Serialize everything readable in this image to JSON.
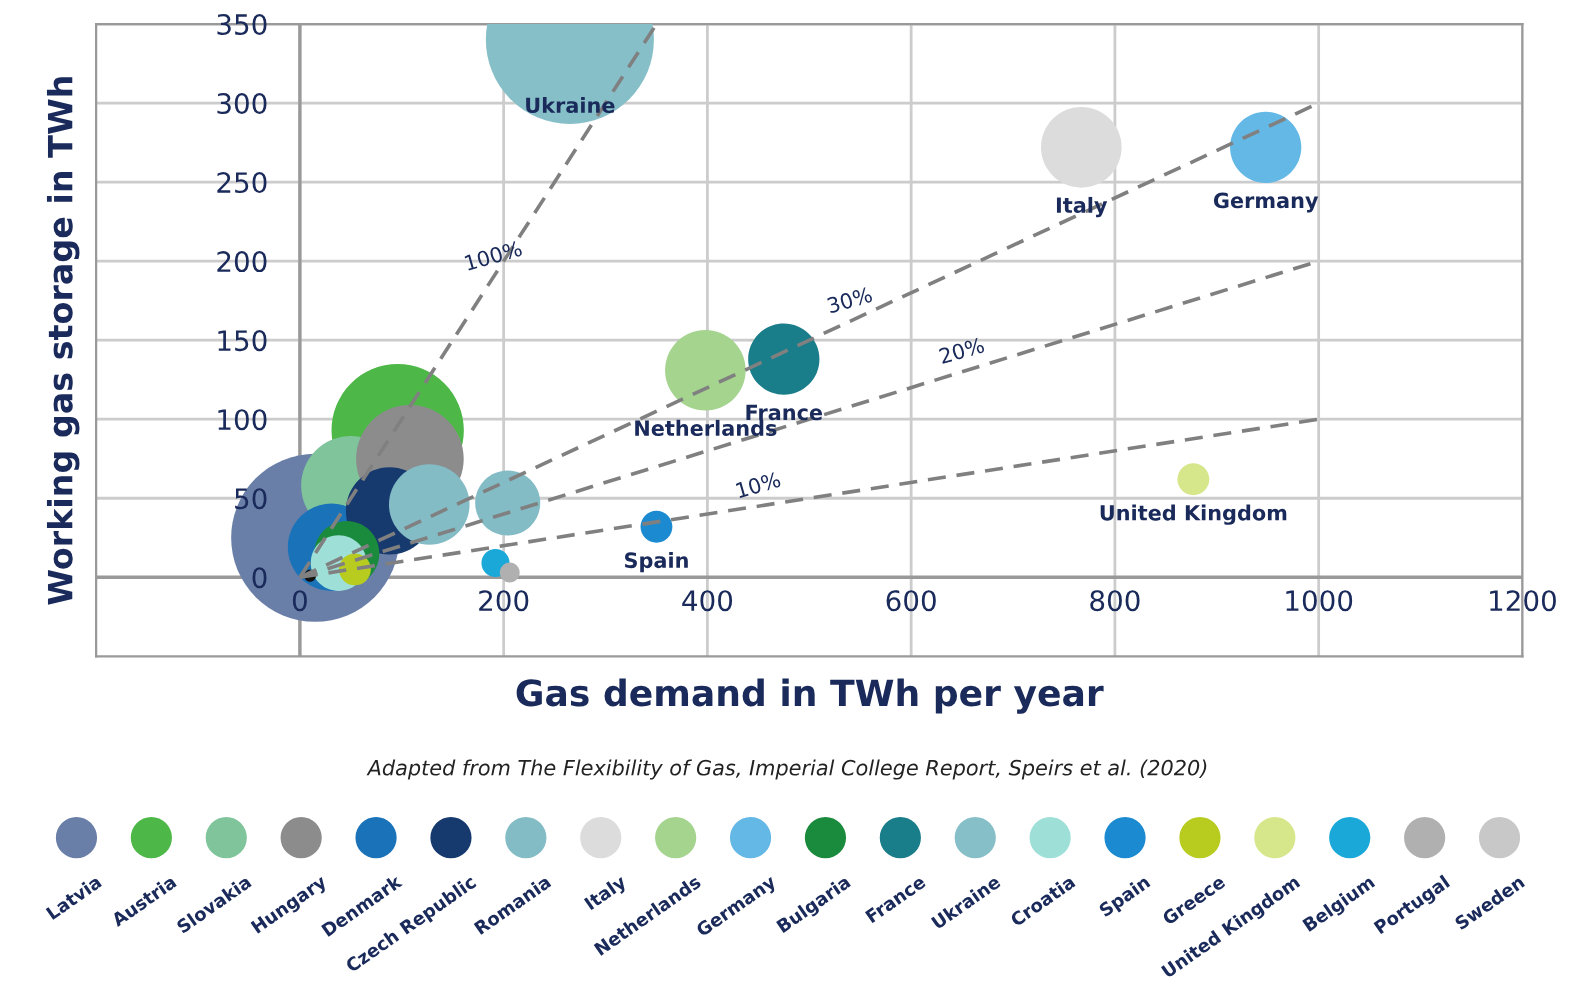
{
  "chart_data": {
    "type": "bubble",
    "xlabel": "Gas demand in TWh per year",
    "ylabel": "Working gas storage in TWh",
    "xlim": [
      -200,
      1200
    ],
    "xticks": [
      0,
      200,
      400,
      600,
      800,
      1000,
      1200
    ],
    "ylim": [
      -50,
      350
    ],
    "yticks": [
      0,
      50,
      100,
      150,
      200,
      250,
      300,
      350
    ],
    "grid": true,
    "legend": "bottom",
    "marker": "circle",
    "series": [
      {
        "name": "Latvia",
        "color": "#6a7fa8",
        "x": [
          15
        ],
        "values": [
          25
        ],
        "sizes": [
          1
        ]
      },
      {
        "name": "Austria",
        "color": "#4db848",
        "x": [
          96
        ],
        "values": [
          93
        ],
        "sizes": [
          0.62
        ]
      },
      {
        "name": "Slovakia",
        "color": "#7fc49a",
        "x": [
          50
        ],
        "values": [
          58
        ],
        "sizes": [
          0.35
        ]
      },
      {
        "name": "Hungary",
        "color": "#8c8c8c",
        "x": [
          108
        ],
        "values": [
          75
        ],
        "sizes": [
          0.41
        ]
      },
      {
        "name": "Denmark",
        "color": "#1a72b8",
        "x": [
          31
        ],
        "values": [
          19
        ],
        "sizes": [
          0.27
        ]
      },
      {
        "name": "Czech Republic",
        "color": "#173a6e",
        "x": [
          88
        ],
        "values": [
          42
        ],
        "sizes": [
          0.27
        ]
      },
      {
        "name": "Romania",
        "color": "#84bcc6",
        "x": [
          127
        ],
        "values": [
          46
        ],
        "sizes": [
          0.23
        ]
      },
      {
        "name": "Italy",
        "color": "#dcdcdc",
        "x": [
          767
        ],
        "values": [
          272
        ],
        "sizes": [
          0.23
        ]
      },
      {
        "name": "Netherlands",
        "color": "#a5d48f",
        "x": [
          398
        ],
        "values": [
          131
        ],
        "sizes": [
          0.23
        ]
      },
      {
        "name": "Germany",
        "color": "#64b8e6",
        "x": [
          948
        ],
        "values": [
          272
        ],
        "sizes": [
          0.18
        ]
      },
      {
        "name": "Bulgaria",
        "color": "#1a8a3c",
        "x": [
          46
        ],
        "values": [
          15
        ],
        "sizes": [
          0.15
        ]
      },
      {
        "name": "France",
        "color": "#1a7d8a",
        "x": [
          475
        ],
        "values": [
          138
        ],
        "sizes": [
          0.18
        ]
      },
      {
        "name": "Ukraine",
        "color": "#86bfc8",
        "x": [
          265
        ],
        "values": [
          340
        ],
        "sizes": [
          1
        ]
      },
      {
        "name": "Croatia",
        "color": "#9ee0d8",
        "x": [
          38
        ],
        "values": [
          9
        ],
        "sizes": [
          0.11
        ]
      },
      {
        "name": "Spain",
        "color": "#1b8ad0",
        "x": [
          350
        ],
        "values": [
          32
        ],
        "sizes": [
          0.036
        ]
      },
      {
        "name": "Greece",
        "color": "#b8cc20",
        "x": [
          54
        ],
        "values": [
          5
        ],
        "sizes": [
          0.036
        ]
      },
      {
        "name": "United Kingdom",
        "color": "#d6e68a",
        "x": [
          877
        ],
        "values": [
          62
        ],
        "sizes": [
          0.036
        ]
      },
      {
        "name": "Belgium",
        "color": "#1aa8d8",
        "x": [
          192
        ],
        "values": [
          9
        ],
        "sizes": [
          0.028
        ]
      },
      {
        "name": "Portugal",
        "color": "#b0b0b0",
        "x": [
          206
        ],
        "values": [
          3
        ],
        "sizes": [
          0.014
        ]
      },
      {
        "name": "Sweden",
        "color": "#c8c8c8",
        "x": [
          null
        ],
        "values": [
          null
        ],
        "sizes": [
          null
        ]
      },
      {
        "color": "#84bcc6",
        "x": [
          204
        ],
        "values": [
          47
        ],
        "sizes": [
          0.15
        ]
      },
      {
        "color": "#111111",
        "x": [
          10
        ],
        "values": [
          1
        ],
        "sizes": [
          0.005
        ]
      },
      {
        "type": "line",
        "color": "#808080",
        "line_style": "dashed",
        "marker": "none",
        "x": [
          0,
          1000
        ],
        "values": [
          0,
          100
        ]
      },
      {
        "type": "line",
        "color": "#808080",
        "line_style": "dashed",
        "marker": "none",
        "x": [
          0,
          1000
        ],
        "values": [
          0,
          200
        ]
      },
      {
        "type": "line",
        "color": "#808080",
        "line_style": "dashed",
        "marker": "none",
        "x": [
          0,
          1000
        ],
        "values": [
          0,
          300
        ]
      },
      {
        "type": "line",
        "color": "#808080",
        "line_style": "dashed",
        "marker": "none",
        "x": [
          0,
          350
        ],
        "values": [
          0,
          350
        ]
      }
    ],
    "annotations": [
      {
        "text": "Ukraine",
        "x": 265,
        "y": 340
      },
      {
        "text": "Italy",
        "x": 767,
        "y": 272
      },
      {
        "text": "Germany",
        "x": 948,
        "y": 272
      },
      {
        "text": "Netherlands",
        "x": 398,
        "y": 131
      },
      {
        "text": "France",
        "x": 475,
        "y": 138
      },
      {
        "text": "Spain",
        "x": 350,
        "y": 32
      },
      {
        "text": "United Kingdom",
        "x": 877,
        "y": 62
      },
      {
        "text": "10%",
        "x": 450,
        "y": 45
      },
      {
        "text": "20%",
        "x": 650,
        "y": 130
      },
      {
        "text": "30%",
        "x": 540,
        "y": 162
      },
      {
        "text": "100%",
        "x": 190,
        "y": 190
      },
      "Adapted from The Flexibility of Gas, Imperial College Report, Speirs et al. (2020)"
    ]
  }
}
